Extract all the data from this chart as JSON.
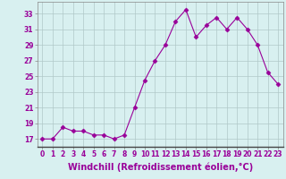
{
  "x": [
    0,
    1,
    2,
    3,
    4,
    5,
    6,
    7,
    8,
    9,
    10,
    11,
    12,
    13,
    14,
    15,
    16,
    17,
    18,
    19,
    20,
    21,
    22,
    23
  ],
  "y": [
    17,
    17,
    18.5,
    18,
    18,
    17.5,
    17.5,
    17,
    17.5,
    21,
    24.5,
    27,
    29,
    32,
    33.5,
    30,
    31.5,
    32.5,
    31,
    32.5,
    31,
    29,
    25.5,
    24
  ],
  "line_color": "#990099",
  "marker": "D",
  "marker_size": 2.5,
  "bg_color": "#d8f0f0",
  "grid_color": "#b0c8c8",
  "xlabel": "Windchill (Refroidissement éolien,°C)",
  "xlabel_color": "#990099",
  "ylabel_ticks": [
    17,
    19,
    21,
    23,
    25,
    27,
    29,
    31,
    33
  ],
  "ylim": [
    16.0,
    34.5
  ],
  "xlim": [
    -0.5,
    23.5
  ],
  "xtick_labels": [
    "0",
    "1",
    "2",
    "3",
    "4",
    "5",
    "6",
    "7",
    "8",
    "9",
    "10",
    "11",
    "12",
    "13",
    "14",
    "15",
    "16",
    "17",
    "18",
    "19",
    "20",
    "21",
    "22",
    "23"
  ],
  "tick_fontsize": 5.5,
  "xlabel_fontsize": 7.0,
  "tick_color": "#990099",
  "spine_color": "#888888"
}
